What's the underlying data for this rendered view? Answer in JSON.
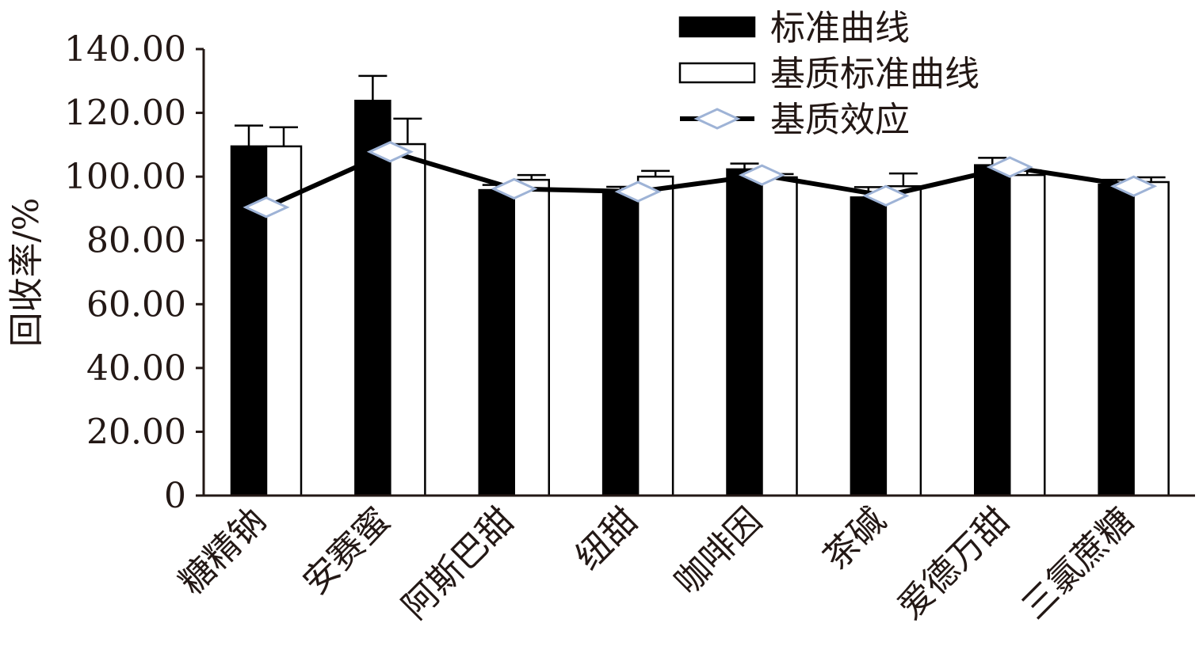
{
  "chart_data": {
    "type": "bar",
    "title": "",
    "xlabel": "",
    "ylabel": "回收率/%",
    "ylim": [
      0,
      140
    ],
    "yticks": [
      "0",
      "20.00",
      "40.00",
      "60.00",
      "80.00",
      "100.00",
      "120.00",
      "140.00"
    ],
    "ytick_values": [
      0,
      20,
      40,
      60,
      80,
      100,
      120,
      140
    ],
    "grid": false,
    "legend_position": "top-right",
    "categories": [
      "糖精钠",
      "安赛蜜",
      "阿斯巴甜",
      "纽甜",
      "咖啡因",
      "茶碱",
      "爱德万甜",
      "三氯蔗糖"
    ],
    "series": [
      {
        "name": "标准曲线",
        "type": "bar",
        "color": "#000000",
        "values": [
          109.5,
          123.8,
          95.8,
          95.3,
          102.3,
          93.5,
          103.6,
          97.5
        ],
        "errors": [
          6.5,
          7.8,
          1.6,
          1.5,
          1.8,
          3.2,
          2.3,
          1.5
        ]
      },
      {
        "name": "基质标准曲线",
        "type": "bar",
        "color": "#ffffff",
        "values": [
          109.5,
          110.2,
          99.0,
          100.0,
          99.8,
          97.0,
          100.5,
          98.3
        ],
        "errors": [
          6.0,
          8.0,
          1.5,
          1.8,
          1.0,
          4.0,
          1.5,
          1.5
        ]
      },
      {
        "name": "基质效应",
        "type": "line",
        "color": "#000000",
        "marker_color": "#9eb3d6",
        "values": [
          90.4,
          107.8,
          96.2,
          95.3,
          100.5,
          94.0,
          103.0,
          97.0
        ]
      }
    ]
  }
}
